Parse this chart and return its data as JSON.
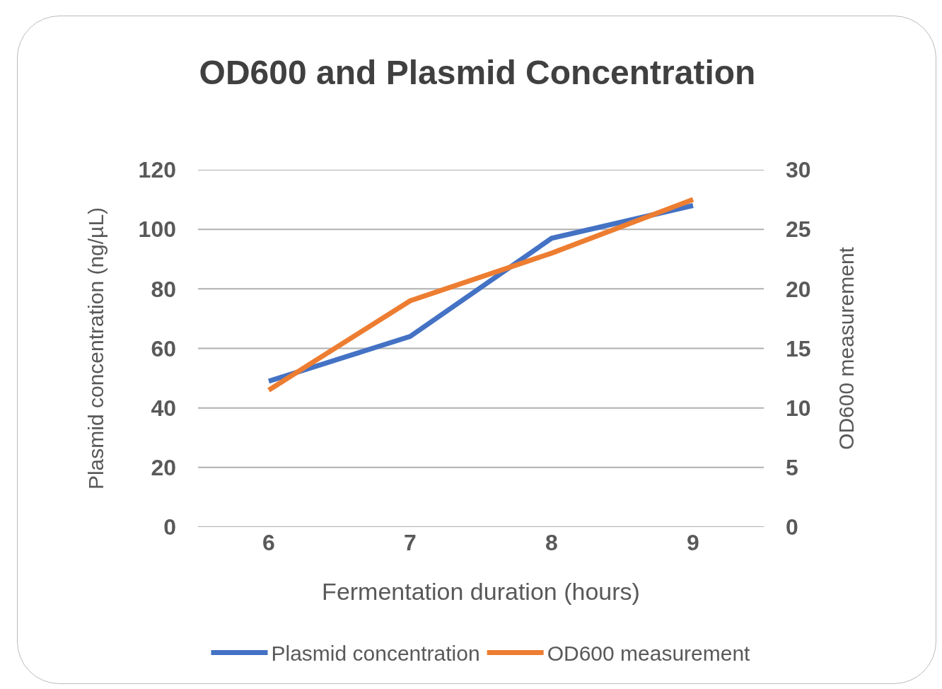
{
  "chart_data": {
    "type": "line",
    "title": "OD600 and Plasmid Concentration",
    "xlabel": "Fermentation duration (hours)",
    "ylabel": "Plasmid concentration (ng/µL)",
    "y2label": "OD600 measurement",
    "categories": [
      "6",
      "7",
      "8",
      "9"
    ],
    "series": [
      {
        "name": "Plasmid concentration",
        "color": "#4472c4",
        "values": [
          49,
          64,
          97,
          108
        ]
      },
      {
        "name": "OD600 measurement",
        "color": "#ed7d31",
        "values": [
          11.5,
          19,
          23,
          27.5
        ],
        "axis": "y2"
      }
    ],
    "ylim": [
      0,
      120
    ],
    "yticks": [
      0,
      20,
      40,
      60,
      80,
      100,
      120
    ],
    "y2lim": [
      0,
      30
    ],
    "y2ticks": [
      0,
      5,
      10,
      15,
      20,
      25,
      30
    ],
    "grid": "y",
    "legend": "bottom",
    "marker": "none",
    "line_style": "solid"
  }
}
